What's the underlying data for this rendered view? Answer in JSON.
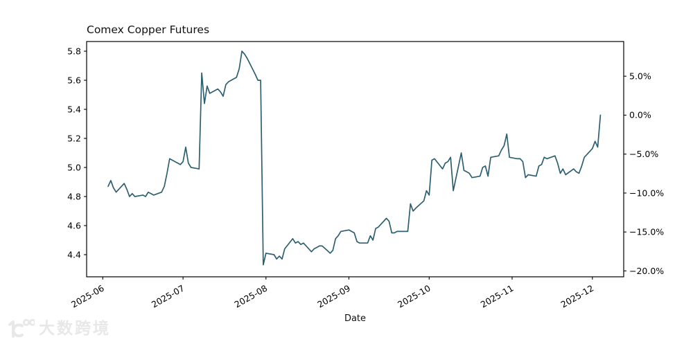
{
  "title": "Comex Copper Futures",
  "watermark": {
    "text": "大数跨境",
    "logo": "10100-logo"
  },
  "chart_data": {
    "type": "line",
    "title": "Comex Copper Futures",
    "xlabel": "Date",
    "ylabel": "",
    "line_color": "#2e5f6e",
    "background": "#ffffff",
    "grid": false,
    "legend": "none",
    "x_tick_labels": [
      "2025-06",
      "2025-07",
      "2025-08",
      "2025-09",
      "2025-10",
      "2025-11",
      "2025-12"
    ],
    "left_y_ticks": [
      5.8,
      5.6,
      5.4,
      5.2,
      5.0,
      4.8,
      4.6,
      4.4
    ],
    "right_y_tick_labels": [
      "5.0%",
      "0.0%",
      "−5.0%",
      "−10.0%",
      "−15.0%",
      "−20.0%"
    ],
    "right_y_ticks_pct": [
      5,
      0,
      -5,
      -10,
      -15,
      -20
    ],
    "right_axis_reference_price": 5.36,
    "ylim_left": [
      4.25,
      5.87
    ],
    "series": [
      {
        "name": "Comex Copper Futures",
        "dates": [
          "2025-06-03",
          "2025-06-04",
          "2025-06-05",
          "2025-06-06",
          "2025-06-09",
          "2025-06-10",
          "2025-06-11",
          "2025-06-12",
          "2025-06-13",
          "2025-06-16",
          "2025-06-17",
          "2025-06-18",
          "2025-06-19",
          "2025-06-20",
          "2025-06-23",
          "2025-06-24",
          "2025-06-25",
          "2025-06-26",
          "2025-06-27",
          "2025-06-30",
          "2025-07-01",
          "2025-07-02",
          "2025-07-03",
          "2025-07-04",
          "2025-07-07",
          "2025-07-08",
          "2025-07-09",
          "2025-07-10",
          "2025-07-11",
          "2025-07-14",
          "2025-07-15",
          "2025-07-16",
          "2025-07-17",
          "2025-07-18",
          "2025-07-21",
          "2025-07-22",
          "2025-07-23",
          "2025-07-24",
          "2025-07-25",
          "2025-07-28",
          "2025-07-29",
          "2025-07-30",
          "2025-07-31",
          "2025-08-01",
          "2025-08-04",
          "2025-08-05",
          "2025-08-06",
          "2025-08-07",
          "2025-08-08",
          "2025-08-11",
          "2025-08-12",
          "2025-08-13",
          "2025-08-14",
          "2025-08-15",
          "2025-08-18",
          "2025-08-19",
          "2025-08-20",
          "2025-08-21",
          "2025-08-22",
          "2025-08-25",
          "2025-08-26",
          "2025-08-27",
          "2025-08-28",
          "2025-08-29",
          "2025-09-01",
          "2025-09-02",
          "2025-09-03",
          "2025-09-04",
          "2025-09-05",
          "2025-09-08",
          "2025-09-09",
          "2025-09-10",
          "2025-09-11",
          "2025-09-12",
          "2025-09-15",
          "2025-09-16",
          "2025-09-17",
          "2025-09-18",
          "2025-09-19",
          "2025-09-22",
          "2025-09-23",
          "2025-09-24",
          "2025-09-25",
          "2025-09-26",
          "2025-09-29",
          "2025-09-30",
          "2025-10-01",
          "2025-10-02",
          "2025-10-03",
          "2025-10-06",
          "2025-10-07",
          "2025-10-08",
          "2025-10-09",
          "2025-10-10",
          "2025-10-13",
          "2025-10-14",
          "2025-10-15",
          "2025-10-16",
          "2025-10-17",
          "2025-10-20",
          "2025-10-21",
          "2025-10-22",
          "2025-10-23",
          "2025-10-24",
          "2025-10-27",
          "2025-10-28",
          "2025-10-29",
          "2025-10-30",
          "2025-10-31",
          "2025-11-03",
          "2025-11-04",
          "2025-11-05",
          "2025-11-06",
          "2025-11-07",
          "2025-11-10",
          "2025-11-11",
          "2025-11-12",
          "2025-11-13",
          "2025-11-14",
          "2025-11-17",
          "2025-11-18",
          "2025-11-19",
          "2025-11-20",
          "2025-11-21",
          "2025-11-24",
          "2025-11-25",
          "2025-11-26",
          "2025-11-27",
          "2025-11-28",
          "2025-12-01",
          "2025-12-02",
          "2025-12-03",
          "2025-12-04"
        ],
        "values": [
          4.87,
          4.91,
          4.86,
          4.83,
          4.89,
          4.85,
          4.8,
          4.82,
          4.8,
          4.81,
          4.8,
          4.83,
          4.82,
          4.81,
          4.83,
          4.87,
          4.96,
          5.06,
          5.05,
          5.02,
          5.04,
          5.14,
          5.03,
          5.0,
          4.99,
          5.65,
          5.44,
          5.56,
          5.51,
          5.54,
          5.52,
          5.49,
          5.57,
          5.59,
          5.62,
          5.68,
          5.8,
          5.78,
          5.75,
          5.64,
          5.6,
          5.6,
          4.33,
          4.41,
          4.4,
          4.37,
          4.39,
          4.37,
          4.44,
          4.51,
          4.48,
          4.49,
          4.47,
          4.48,
          4.42,
          4.44,
          4.45,
          4.46,
          4.46,
          4.41,
          4.43,
          4.51,
          4.53,
          4.56,
          4.57,
          4.56,
          4.55,
          4.49,
          4.48,
          4.48,
          4.53,
          4.5,
          4.58,
          4.59,
          4.65,
          4.63,
          4.55,
          4.55,
          4.56,
          4.56,
          4.56,
          4.75,
          4.7,
          4.72,
          4.77,
          4.84,
          4.81,
          5.05,
          5.06,
          4.99,
          5.03,
          5.04,
          5.07,
          4.84,
          5.1,
          4.98,
          4.97,
          4.96,
          4.93,
          4.94,
          5.0,
          5.01,
          4.94,
          5.07,
          5.08,
          5.12,
          5.15,
          5.23,
          5.07,
          5.06,
          5.06,
          5.04,
          4.93,
          4.95,
          4.94,
          5.01,
          5.02,
          5.07,
          5.06,
          5.08,
          5.03,
          4.96,
          4.99,
          4.95,
          4.99,
          4.97,
          4.96,
          5.01,
          5.07,
          5.13,
          5.18,
          5.14,
          5.36
        ]
      }
    ]
  }
}
